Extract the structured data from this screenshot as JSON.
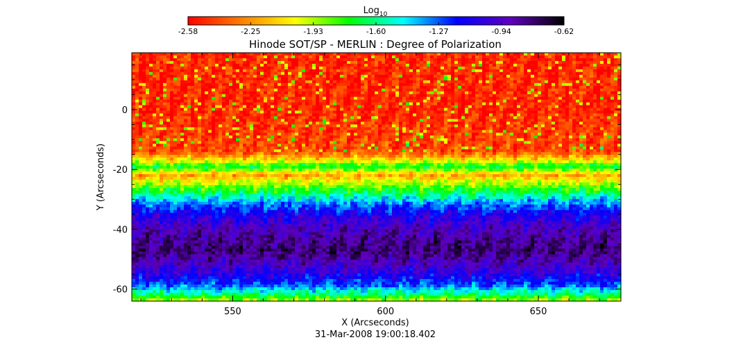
{
  "chart_data": {
    "type": "heatmap",
    "title": "Hinode SOT/SP - MERLIN : Degree of Polarization",
    "xlabel": "X (Arcseconds)",
    "ylabel": "Y (Arcseconds)",
    "timestamp": "31-Mar-2008 19:00:18.402",
    "xlim": [
      517,
      677
    ],
    "ylim": [
      -64,
      19
    ],
    "x_ticks": [
      550,
      600,
      650
    ],
    "y_ticks": [
      0,
      -20,
      -40,
      -60
    ],
    "colorbar": {
      "label_base": "Log",
      "label_sub": "10",
      "range": [
        -2.58,
        -0.62
      ],
      "ticks": [
        "-2.58",
        "-2.25",
        "-1.93",
        "-1.60",
        "-1.27",
        "-0.94",
        "-0.62"
      ],
      "colors": [
        "#ff0000",
        "#ff7f00",
        "#ffff00",
        "#00ff00",
        "#00ffff",
        "#0000ff",
        "#6000c0",
        "#000000"
      ]
    },
    "profile": [
      {
        "y": 19,
        "value": -2.5
      },
      {
        "y": 0,
        "value": -2.5
      },
      {
        "y": -14,
        "value": -2.42
      },
      {
        "y": -17,
        "value": -2.05
      },
      {
        "y": -19,
        "value": -1.7
      },
      {
        "y": -22,
        "value": -2.2
      },
      {
        "y": -25,
        "value": -1.9
      },
      {
        "y": -28,
        "value": -1.62
      },
      {
        "y": -31,
        "value": -1.35
      },
      {
        "y": -35,
        "value": -1.1
      },
      {
        "y": -40,
        "value": -0.92
      },
      {
        "y": -47,
        "value": -0.78
      },
      {
        "y": -52,
        "value": -0.95
      },
      {
        "y": -56,
        "value": -1.12
      },
      {
        "y": -59,
        "value": -1.3
      },
      {
        "y": -62,
        "value": -1.65
      },
      {
        "y": -64,
        "value": -1.95
      }
    ]
  }
}
